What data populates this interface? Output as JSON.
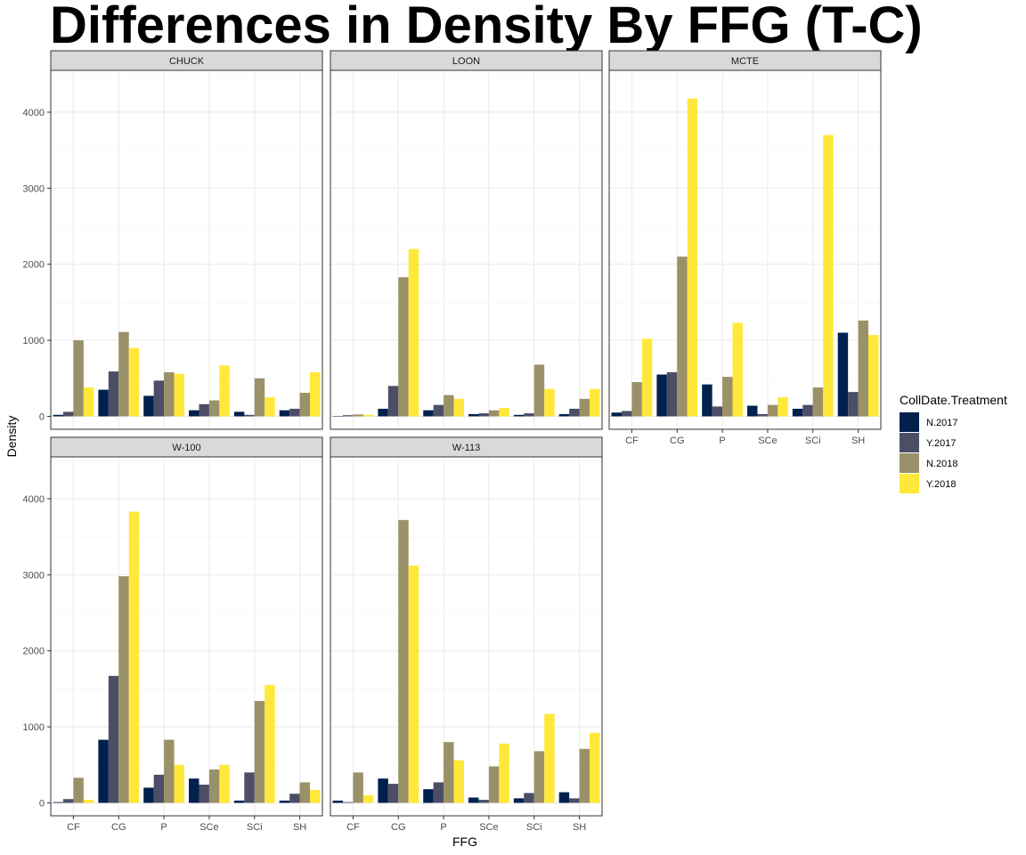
{
  "chart_data": {
    "type": "bar",
    "title": "Differences in Density By FFG (T-C)",
    "xlabel": "FFG",
    "ylabel": "Density",
    "ylim": [
      -170,
      4550
    ],
    "yticks": [
      0,
      1000,
      2000,
      3000,
      4000
    ],
    "categories": [
      "CF",
      "CG",
      "P",
      "SCe",
      "SCi",
      "SH"
    ],
    "grid": true,
    "legend": {
      "title": "CollDate.Treatment",
      "placement": "right",
      "entries": [
        "N.2017",
        "Y.2017",
        "N.2018",
        "Y.2018"
      ]
    },
    "series_colors": {
      "N.2017": "#00204d",
      "Y.2017": "#4c4e66",
      "N.2018": "#9b9168",
      "Y.2018": "#ffe839"
    },
    "panels": [
      {
        "facet": "CHUCK",
        "series": [
          {
            "name": "N.2017",
            "values": [
              20,
              350,
              270,
              80,
              60,
              80
            ]
          },
          {
            "name": "Y.2017",
            "values": [
              60,
              590,
              470,
              160,
              20,
              100
            ]
          },
          {
            "name": "N.2018",
            "values": [
              1000,
              1110,
              580,
              210,
              500,
              310
            ]
          },
          {
            "name": "Y.2018",
            "values": [
              380,
              900,
              560,
              670,
              250,
              580
            ]
          }
        ]
      },
      {
        "facet": "LOON",
        "series": [
          {
            "name": "N.2017",
            "values": [
              5,
              100,
              80,
              30,
              20,
              30
            ]
          },
          {
            "name": "Y.2017",
            "values": [
              15,
              400,
              150,
              40,
              40,
              100
            ]
          },
          {
            "name": "N.2018",
            "values": [
              25,
              1830,
              280,
              80,
              680,
              230
            ]
          },
          {
            "name": "Y.2018",
            "values": [
              20,
              2200,
              230,
              110,
              360,
              360
            ]
          }
        ]
      },
      {
        "facet": "MCTE",
        "series": [
          {
            "name": "N.2017",
            "values": [
              50,
              550,
              420,
              140,
              100,
              1100
            ]
          },
          {
            "name": "Y.2017",
            "values": [
              70,
              580,
              130,
              30,
              150,
              320
            ]
          },
          {
            "name": "N.2018",
            "values": [
              450,
              2100,
              520,
              150,
              380,
              1260
            ]
          },
          {
            "name": "Y.2018",
            "values": [
              1020,
              4180,
              1230,
              250,
              3700,
              1070
            ]
          }
        ]
      },
      {
        "facet": "W-100",
        "series": [
          {
            "name": "N.2017",
            "values": [
              10,
              830,
              200,
              320,
              30,
              30
            ]
          },
          {
            "name": "Y.2017",
            "values": [
              50,
              1670,
              370,
              240,
              400,
              120
            ]
          },
          {
            "name": "N.2018",
            "values": [
              330,
              2980,
              830,
              440,
              1340,
              270
            ]
          },
          {
            "name": "Y.2018",
            "values": [
              40,
              3830,
              500,
              500,
              1550,
              170
            ]
          }
        ]
      },
      {
        "facet": "W-113",
        "series": [
          {
            "name": "N.2017",
            "values": [
              30,
              320,
              180,
              70,
              60,
              140
            ]
          },
          {
            "name": "Y.2017",
            "values": [
              10,
              250,
              270,
              40,
              130,
              60
            ]
          },
          {
            "name": "N.2018",
            "values": [
              400,
              3720,
              800,
              480,
              680,
              710
            ]
          },
          {
            "name": "Y.2018",
            "values": [
              100,
              3120,
              560,
              780,
              1170,
              920
            ]
          }
        ]
      }
    ]
  }
}
